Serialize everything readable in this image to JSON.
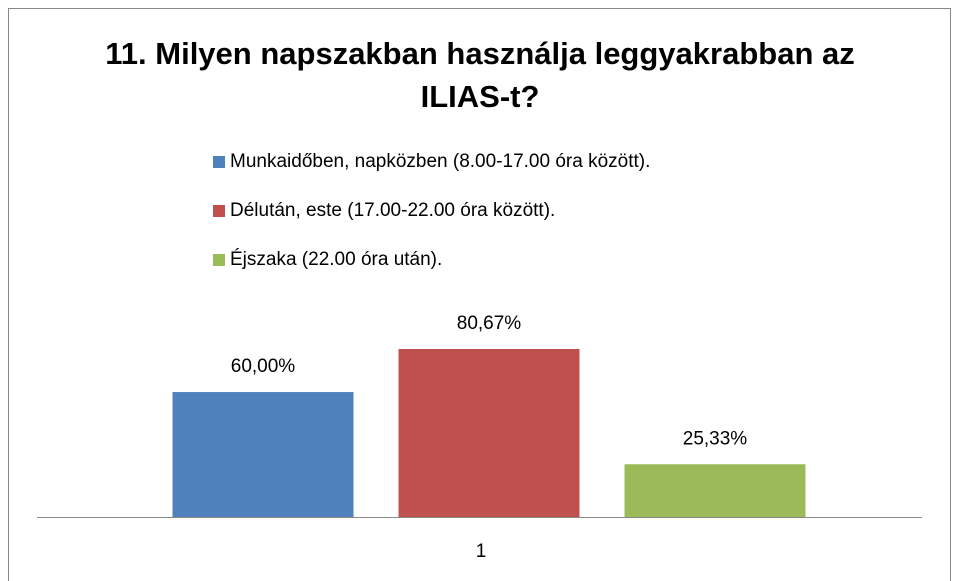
{
  "chart_data": {
    "type": "bar",
    "title": "11. Milyen napszakban használja leggyakrabban az ILIAS-t?",
    "categories": [
      "1"
    ],
    "series": [
      {
        "name": "Munkaidőben, napközben (8.00-17.00 óra között).",
        "color": "#4f81bd",
        "values": [
          60.0
        ],
        "value_labels": [
          "60,00%"
        ]
      },
      {
        "name": "Délután, este (17.00-22.00 óra között).",
        "color": "#c0504d",
        "values": [
          80.67
        ],
        "value_labels": [
          "80,67%"
        ]
      },
      {
        "name": "Éjszaka (22.00 óra után).",
        "color": "#9bbb59",
        "values": [
          25.33
        ],
        "value_labels": [
          "25,33%"
        ]
      }
    ],
    "legend": "top"
  }
}
